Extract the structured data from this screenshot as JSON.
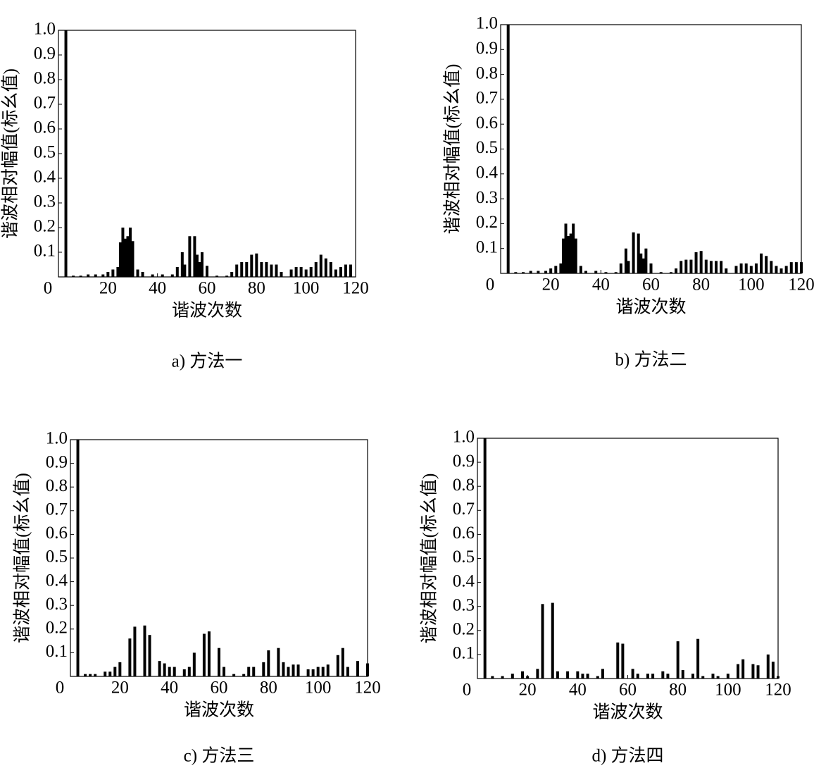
{
  "chart_data": [
    {
      "type": "bar",
      "caption": "a) 方法一",
      "xlabel": "谐波次数",
      "ylabel": "谐波相对幅值(标幺值)",
      "color": "#000000",
      "xlim": [
        0,
        120
      ],
      "ylim": [
        0,
        1
      ],
      "xticks": [
        0,
        20,
        40,
        60,
        80,
        100,
        120
      ],
      "yticks": [
        0.1,
        0.2,
        0.3,
        0.4,
        0.5,
        0.6,
        0.7,
        0.8,
        0.9,
        {
          "value": 1,
          "label": "1.0"
        }
      ],
      "x": [
        3,
        6,
        9,
        12,
        15,
        18,
        20,
        22,
        24,
        25,
        26,
        27,
        28,
        29,
        30,
        32,
        34,
        38,
        42,
        46,
        48,
        50,
        51,
        53,
        55,
        56,
        57,
        58,
        60,
        64,
        68,
        70,
        72,
        74,
        76,
        78,
        80,
        82,
        84,
        86,
        88,
        90,
        94,
        96,
        98,
        100,
        102,
        104,
        106,
        108,
        110,
        112,
        114,
        116,
        118
      ],
      "values": [
        1,
        0.005,
        0.005,
        0.01,
        0.01,
        0.01,
        0.02,
        0.03,
        0.04,
        0.14,
        0.2,
        0.155,
        0.165,
        0.2,
        0.145,
        0.03,
        0.02,
        0.01,
        0.01,
        0.01,
        0.04,
        0.1,
        0.05,
        0.165,
        0.165,
        0.09,
        0.06,
        0.1,
        0.045,
        0.005,
        0.005,
        0.02,
        0.05,
        0.06,
        0.06,
        0.09,
        0.095,
        0.06,
        0.06,
        0.05,
        0.05,
        0.02,
        0.03,
        0.04,
        0.04,
        0.03,
        0.04,
        0.06,
        0.09,
        0.075,
        0.06,
        0.03,
        0.04,
        0.05,
        0.05
      ]
    },
    {
      "type": "bar",
      "caption": "b) 方法二",
      "xlabel": "谐波次数",
      "ylabel": "谐波相对幅值(标幺值)",
      "color": "#000000",
      "xlim": [
        0,
        120
      ],
      "ylim": [
        0,
        1
      ],
      "xticks": [
        0,
        20,
        40,
        60,
        80,
        100,
        120
      ],
      "yticks": [
        0.1,
        0.2,
        0.3,
        0.4,
        0.5,
        0.6,
        0.7,
        0.8,
        0.9,
        {
          "value": 1,
          "label": "1.0"
        }
      ],
      "x": [
        3,
        6,
        9,
        12,
        15,
        18,
        20,
        22,
        24,
        25,
        26,
        27,
        28,
        29,
        30,
        32,
        34,
        38,
        42,
        46,
        48,
        50,
        51,
        53,
        55,
        56,
        57,
        58,
        60,
        64,
        68,
        70,
        72,
        74,
        76,
        78,
        80,
        82,
        84,
        86,
        88,
        90,
        94,
        96,
        98,
        100,
        102,
        104,
        106,
        108,
        110,
        112,
        114,
        116,
        118,
        120
      ],
      "values": [
        1,
        0.005,
        0.005,
        0.01,
        0.01,
        0.01,
        0.02,
        0.03,
        0.04,
        0.14,
        0.2,
        0.15,
        0.16,
        0.2,
        0.14,
        0.03,
        0.01,
        0.01,
        0.005,
        0.005,
        0.04,
        0.1,
        0.05,
        0.165,
        0.16,
        0.08,
        0.06,
        0.1,
        0.04,
        0.005,
        0.005,
        0.02,
        0.05,
        0.055,
        0.055,
        0.085,
        0.09,
        0.055,
        0.05,
        0.05,
        0.05,
        0.02,
        0.03,
        0.04,
        0.04,
        0.03,
        0.04,
        0.08,
        0.07,
        0.05,
        0.03,
        0.02,
        0.03,
        0.045,
        0.045,
        0.045
      ]
    },
    {
      "type": "bar",
      "caption": "c) 方法三",
      "xlabel": "谐波次数",
      "ylabel": "谐波相对幅值(标幺值)",
      "color": "#000000",
      "xlim": [
        0,
        120
      ],
      "ylim": [
        0,
        1
      ],
      "xticks": [
        0,
        20,
        40,
        60,
        80,
        100,
        120
      ],
      "yticks": [
        0.1,
        0.2,
        0.3,
        0.4,
        0.5,
        0.6,
        0.7,
        0.8,
        0.9,
        {
          "value": 1,
          "label": "1.0"
        }
      ],
      "x": [
        3,
        6,
        8,
        10,
        14,
        16,
        18,
        20,
        24,
        26,
        30,
        32,
        36,
        38,
        40,
        42,
        46,
        48,
        50,
        54,
        56,
        60,
        62,
        66,
        70,
        72,
        74,
        78,
        80,
        84,
        86,
        88,
        90,
        92,
        96,
        98,
        100,
        102,
        104,
        108,
        110,
        112,
        116,
        120
      ],
      "values": [
        1,
        0.01,
        0.01,
        0.01,
        0.02,
        0.02,
        0.04,
        0.06,
        0.16,
        0.21,
        0.215,
        0.175,
        0.065,
        0.055,
        0.04,
        0.04,
        0.03,
        0.04,
        0.1,
        0.18,
        0.19,
        0.12,
        0.04,
        0.01,
        0.01,
        0.04,
        0.04,
        0.06,
        0.11,
        0.12,
        0.06,
        0.04,
        0.05,
        0.05,
        0.03,
        0.03,
        0.04,
        0.04,
        0.05,
        0.09,
        0.12,
        0.04,
        0.065,
        0.055
      ]
    },
    {
      "type": "bar",
      "caption": "d) 方法四",
      "xlabel": "谐波次数",
      "ylabel": "谐波相对幅值(标幺值)",
      "color": "#000000",
      "xlim": [
        0,
        120
      ],
      "ylim": [
        0,
        1
      ],
      "xticks": [
        0,
        20,
        40,
        60,
        80,
        100,
        120
      ],
      "yticks": [
        0.1,
        0.2,
        0.3,
        0.4,
        0.5,
        0.6,
        0.7,
        0.8,
        0.9,
        {
          "value": 1,
          "label": "1.0"
        }
      ],
      "x": [
        3,
        6,
        10,
        14,
        18,
        20,
        24,
        26,
        30,
        32,
        36,
        40,
        42,
        44,
        48,
        50,
        56,
        58,
        62,
        64,
        68,
        70,
        74,
        76,
        80,
        82,
        86,
        88,
        90,
        94,
        96,
        100,
        104,
        106,
        110,
        112,
        116,
        118,
        120
      ],
      "values": [
        1,
        0.01,
        0.01,
        0.02,
        0.03,
        0.01,
        0.04,
        0.31,
        0.315,
        0.03,
        0.03,
        0.03,
        0.02,
        0.02,
        0.01,
        0.04,
        0.15,
        0.145,
        0.04,
        0.02,
        0.02,
        0.02,
        0.03,
        0.02,
        0.155,
        0.035,
        0.02,
        0.165,
        0.01,
        0.02,
        0.01,
        0.02,
        0.06,
        0.08,
        0.06,
        0.055,
        0.1,
        0.07,
        0.01
      ]
    }
  ]
}
